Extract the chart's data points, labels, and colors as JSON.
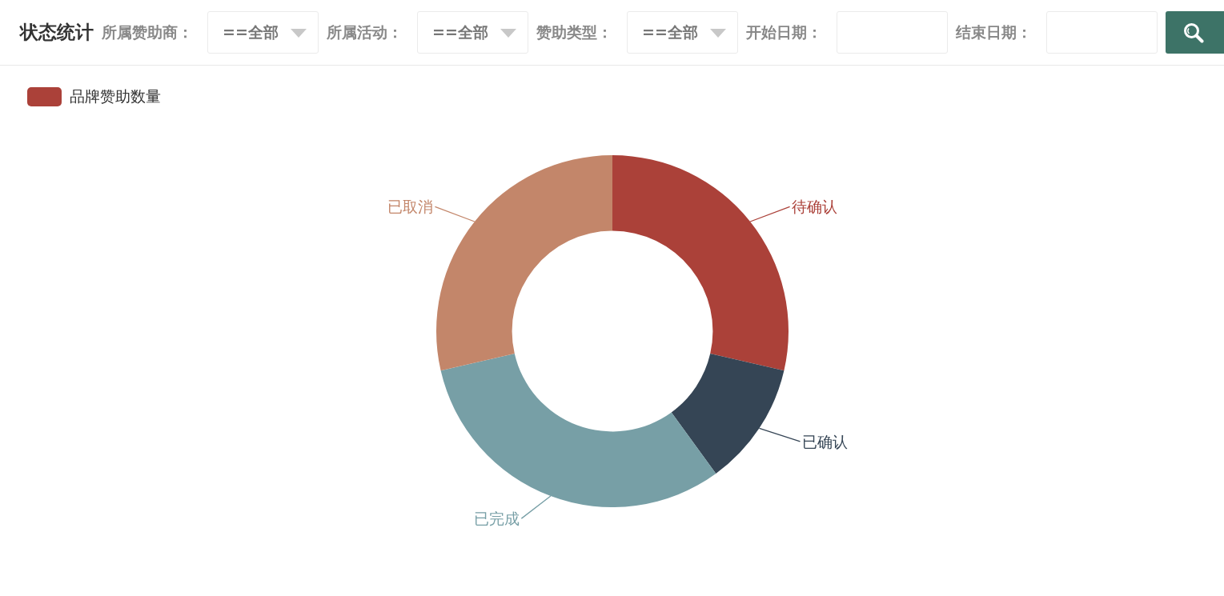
{
  "chart_data": {
    "type": "donut",
    "title": "状态统计",
    "annotations": [
      "所属赞助商：",
      "==全部",
      "所属活动：",
      "==全部",
      "赞助类型：",
      "==全部",
      "开始日期：",
      "结束日期："
    ],
    "categories": [
      "待确认",
      "已确认",
      "已完成",
      "已取消"
    ],
    "series": [
      {
        "name": "品牌赞助数量",
        "color": "#ab4139",
        "values": [
          28.6,
          11.4,
          31.4,
          28.6
        ]
      }
    ],
    "colors": [
      "#ab4139",
      "#354555",
      "#779fa6",
      "#c3866a"
    ],
    "legend": "top left"
  }
}
